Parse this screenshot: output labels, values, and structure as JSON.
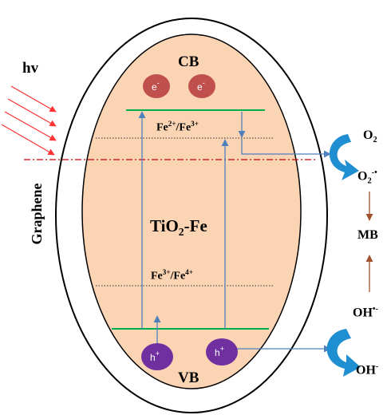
{
  "labels": {
    "hv": "hv",
    "cb": "CB",
    "vb": "VB",
    "graphene": "Graphene",
    "fe23_a": "Fe",
    "fe23_b": "2+",
    "fe23_c": "/Fe",
    "fe23_d": "3+",
    "fe34_a": "Fe",
    "fe34_b": "3+",
    "fe34_c": "/Fe",
    "fe34_d": "4+",
    "tio2_a": "TiO",
    "tio2_b": "2",
    "tio2_c": "-Fe",
    "o2_a": "O",
    "o2_b": "2",
    "o2rad_a": "O",
    "o2rad_b": "2",
    "o2rad_c": "-•",
    "mb": "MB",
    "ohrad_a": "OH",
    "ohrad_b": "•-",
    "oh_a": "OH",
    "oh_b": "-"
  },
  "particles": {
    "electron": "e",
    "electron_charge": "-",
    "hole": "h",
    "hole_charge": "+"
  },
  "colors": {
    "band_fill": "#fbd4b4",
    "band_edge": "#00b050",
    "electron": "#c0504d",
    "hole": "#7030a0",
    "light": "#ff3333",
    "fermi": "#cc0000",
    "transfer_arrow": "#4f81bd",
    "reaction_arrow": "#1f8fd1",
    "product_arrow": "#a0522d"
  }
}
